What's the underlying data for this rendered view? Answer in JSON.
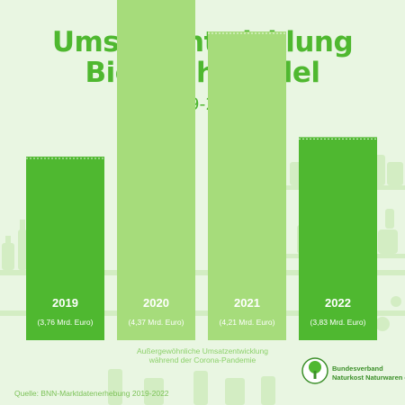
{
  "title_line1": "Umsatzentwicklung",
  "title_line2": "Bio-Fachhandel",
  "subtitle": "2019-2022",
  "colors": {
    "background": "#e9f6e2",
    "title": "#4fb830",
    "bar_dark": "#4fb830",
    "bar_light": "#a6dc7b",
    "shelf_decor": "#d3edc3"
  },
  "chart_data": {
    "type": "bar",
    "categories": [
      "2019",
      "2020",
      "2021",
      "2022"
    ],
    "values": [
      3.76,
      4.37,
      4.21,
      3.83
    ],
    "value_labels": [
      "(3,76 Mrd. Euro)",
      "(4,37 Mrd. Euro)",
      "(4,21 Mrd. Euro)",
      "(3,83 Mrd. Euro)"
    ],
    "unit": "Mrd. Euro",
    "highlighted": [
      "2020",
      "2021"
    ],
    "reference_line": "dashed",
    "grid": false,
    "legend": "none"
  },
  "footnote_line1": "Außergewöhnliche Umsatzentwicklung",
  "footnote_line2": "während der Corona-Pandemie",
  "source": "Quelle: BNN-Marktdatenerhebung 2019-2022",
  "logo": {
    "line1": "Bundesverband",
    "line2": "Naturkost Naturwaren e.V.",
    "icon": "tree-icon"
  }
}
